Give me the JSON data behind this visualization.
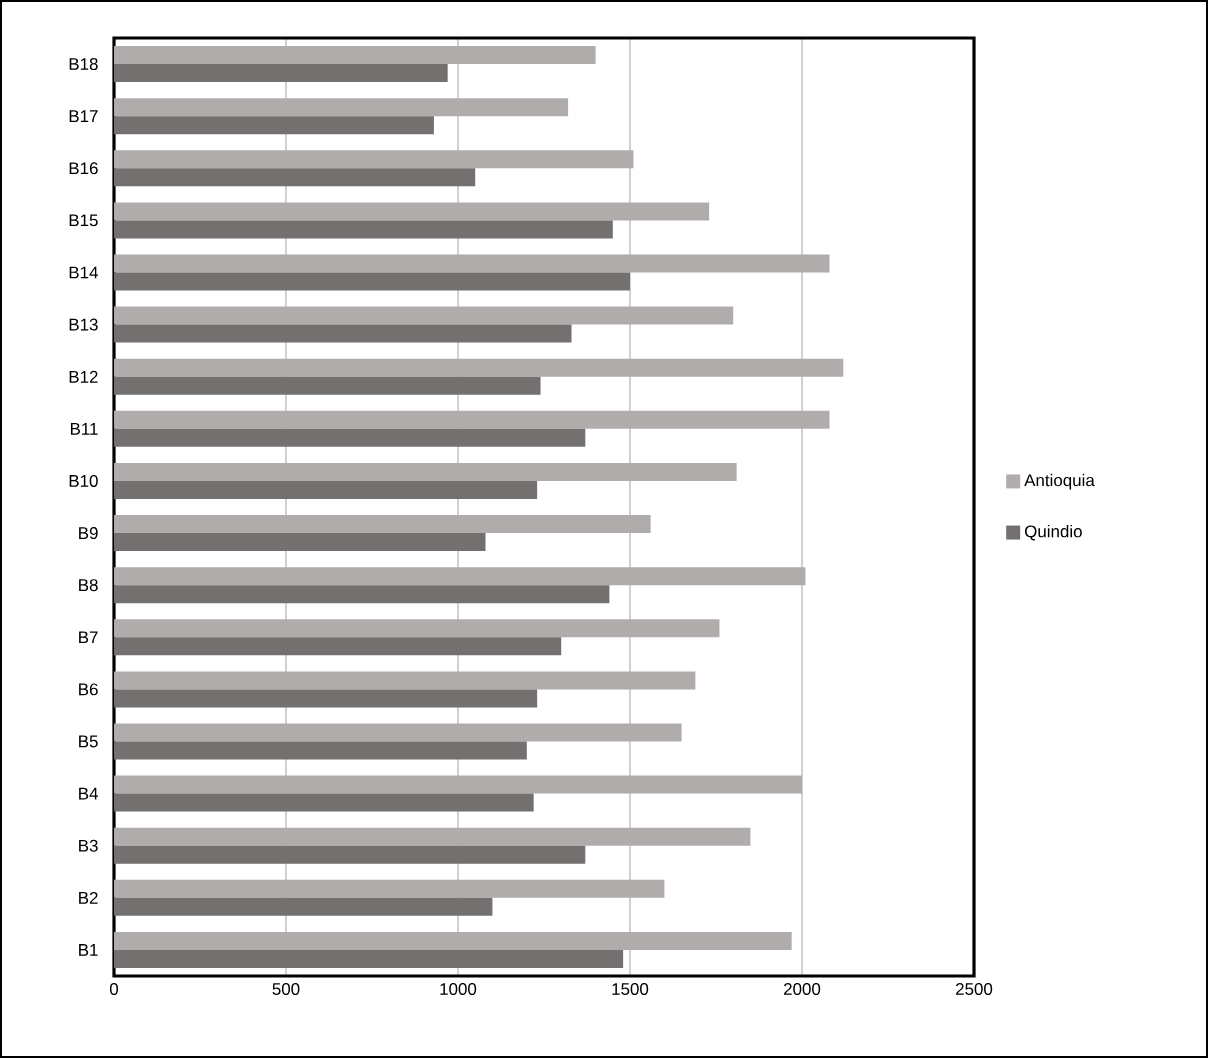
{
  "chart_data": {
    "type": "bar",
    "orientation": "horizontal",
    "categories": [
      "B18",
      "B17",
      "B16",
      "B15",
      "B14",
      "B13",
      "B12",
      "B11",
      "B10",
      "B9",
      "B8",
      "B7",
      "B6",
      "B5",
      "B4",
      "B3",
      "B2",
      "B1"
    ],
    "series": [
      {
        "name": "Antioquia",
        "color": "#b0acab",
        "values": [
          1400,
          1320,
          1510,
          1730,
          2080,
          1800,
          2120,
          2080,
          1810,
          1560,
          2010,
          1760,
          1690,
          1650,
          2000,
          1850,
          1600,
          1970
        ]
      },
      {
        "name": "Quindio",
        "color": "#73706f",
        "values": [
          970,
          930,
          1050,
          1450,
          1500,
          1330,
          1240,
          1370,
          1230,
          1080,
          1440,
          1300,
          1230,
          1200,
          1220,
          1370,
          1100,
          1480
        ]
      }
    ],
    "xlim": [
      0,
      2500
    ],
    "xticks": [
      0,
      500,
      1000,
      1500,
      2000,
      2500
    ],
    "grid": "x",
    "legend": "right"
  }
}
